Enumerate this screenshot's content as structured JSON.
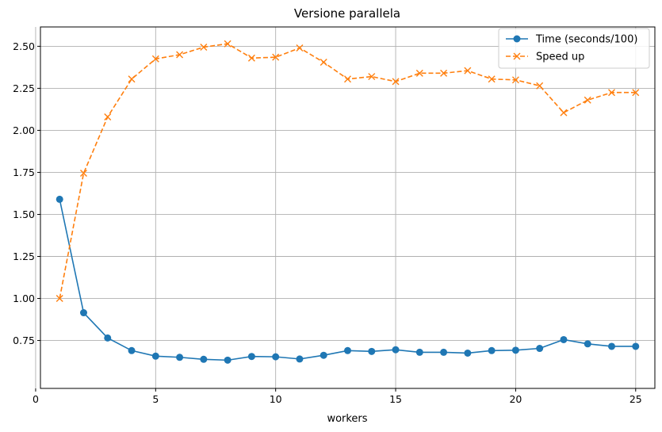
{
  "chart_data": {
    "type": "line",
    "title": "Versione parallela",
    "xlabel": "workers",
    "ylabel": "",
    "xlim": [
      0.2,
      25.8
    ],
    "ylim": [
      0.465,
      2.615
    ],
    "xticks": [
      0,
      5,
      10,
      15,
      20,
      25
    ],
    "yticks": [
      0.75,
      1.0,
      1.25,
      1.5,
      1.75,
      2.0,
      2.25,
      2.5
    ],
    "ytick_labels": [
      "0.75",
      "1.00",
      "1.25",
      "1.50",
      "1.75",
      "2.00",
      "2.25",
      "2.50"
    ],
    "grid": true,
    "legend_position": "top-right",
    "x": [
      1,
      2,
      3,
      4,
      5,
      6,
      7,
      8,
      9,
      10,
      11,
      12,
      13,
      14,
      15,
      16,
      17,
      18,
      19,
      20,
      21,
      22,
      23,
      24,
      25
    ],
    "series": [
      {
        "name": "Time (seconds/100)",
        "color": "#1f77b4",
        "marker": "circle",
        "linestyle": "solid",
        "values": [
          1.59,
          0.915,
          0.765,
          0.69,
          0.657,
          0.65,
          0.638,
          0.633,
          0.655,
          0.653,
          0.64,
          0.662,
          0.69,
          0.685,
          0.695,
          0.68,
          0.68,
          0.675,
          0.69,
          0.692,
          0.703,
          0.755,
          0.73,
          0.715,
          0.715
        ]
      },
      {
        "name": "Speed up",
        "color": "#ff7f0e",
        "marker": "x",
        "linestyle": "dashed",
        "values": [
          1.0,
          1.745,
          2.08,
          2.305,
          2.425,
          2.45,
          2.495,
          2.515,
          2.43,
          2.435,
          2.49,
          2.405,
          2.305,
          2.32,
          2.29,
          2.34,
          2.34,
          2.355,
          2.305,
          2.3,
          2.265,
          2.105,
          2.18,
          2.225,
          2.225
        ]
      }
    ]
  }
}
